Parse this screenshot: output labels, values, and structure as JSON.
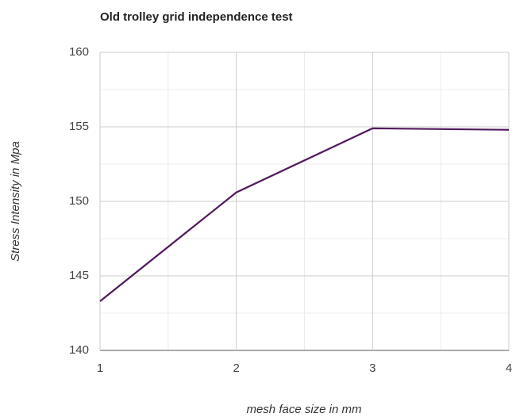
{
  "chart_data": {
    "type": "line",
    "title": "Old trolley grid independence test",
    "x_label": "mesh face size in mm",
    "y_label": "Stress Intensity in Mpa",
    "x": [
      1,
      2,
      3,
      4
    ],
    "series": [
      {
        "name": "Stress Intensity",
        "color": "#511a5c",
        "values": [
          143.3,
          150.6,
          154.9,
          154.8
        ]
      }
    ],
    "xlim": [
      1,
      4
    ],
    "xticks": [
      1,
      2,
      3,
      4
    ],
    "xminorticks": [
      1.5,
      2.5,
      3.5
    ],
    "ylim": [
      140,
      160
    ],
    "yticks": [
      140,
      145,
      150,
      155,
      160
    ],
    "yminorticks": [
      142.5,
      147.5,
      152.5,
      157.5
    ],
    "grid": true
  }
}
